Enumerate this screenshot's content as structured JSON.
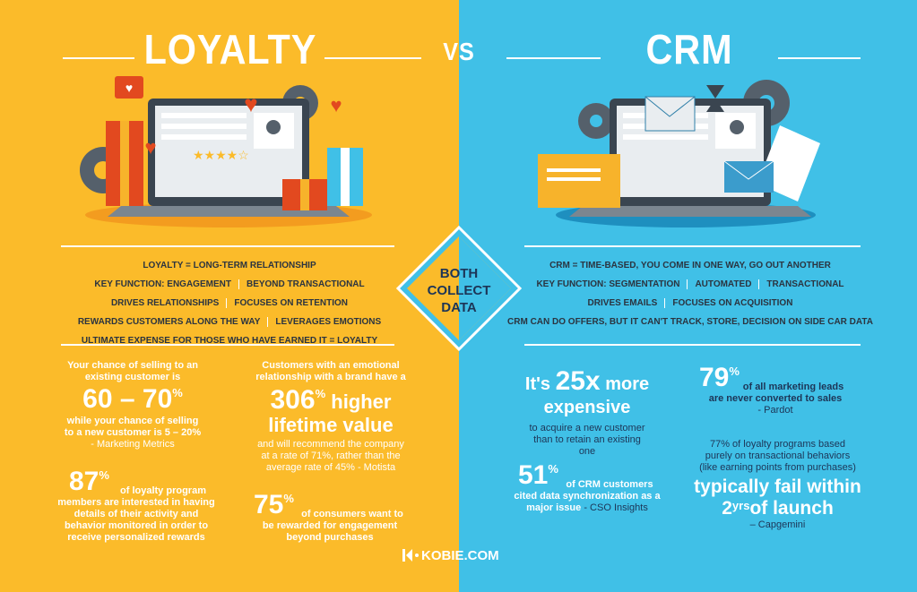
{
  "header": {
    "left_title": "LOYALTY",
    "vs": "VS",
    "right_title": "CRM"
  },
  "center": {
    "lines": [
      "BOTH",
      "COLLECT",
      "DATA"
    ]
  },
  "loyalty": {
    "features": [
      [
        "LOYALTY = LONG-TERM RELATIONSHIP"
      ],
      [
        "KEY FUNCTION: ENGAGEMENT",
        "BEYOND TRANSACTIONAL"
      ],
      [
        "DRIVES RELATIONSHIPS",
        "FOCUSES ON RETENTION"
      ],
      [
        "REWARDS CUSTOMERS ALONG THE WAY",
        "LEVERAGES EMOTIONS"
      ],
      [
        "ULTIMATE EXPENSE FOR THOSE WHO HAVE EARNED IT = LOYALTY"
      ]
    ],
    "stats": [
      {
        "pre": "Your chance of selling to an existing customer is",
        "big": "60 – 70",
        "sup": "%",
        "post": "while your chance of selling to a new customer is 5 – 20%",
        "source": "- Marketing Metrics"
      },
      {
        "big": "87",
        "sup": "%",
        "text": "of loyalty program members are interested in having details of their activity and behavior monitored in order to receive personalized rewards"
      },
      {
        "pre": "Customers with an emotional relationship with a brand have a",
        "big": "306",
        "sup": "%",
        "big2": "higher lifetime value",
        "post": "and will recommend the company at a rate of 71%, rather than the average rate of 45% - Motista"
      },
      {
        "big": "75",
        "sup": "%",
        "text": "of consumers want to be rewarded for engagement beyond purchases"
      }
    ]
  },
  "crm": {
    "features": [
      [
        "CRM = TIME-BASED, YOU COME IN ONE WAY, GO OUT ANOTHER"
      ],
      [
        "KEY FUNCTION: SEGMENTATION",
        "AUTOMATED",
        "TRANSACTIONAL"
      ],
      [
        "DRIVES EMAILS",
        "FOCUSES ON ACQUISITION"
      ],
      [
        "CRM CAN DO OFFERS, BUT IT CAN'T TRACK, STORE, DECISION ON SIDE CAR DATA"
      ]
    ],
    "stats": [
      {
        "lead": "It's",
        "big": "25x",
        "big2": "more expensive",
        "post": "to acquire a new customer than to retain an existing one"
      },
      {
        "big": "51",
        "sup": "%",
        "text": "of CRM customers cited data synchronization as a major issue",
        "source": "- CSO Insights"
      },
      {
        "big": "79",
        "sup": "%",
        "text": "of all marketing leads are never converted to sales",
        "source": "- Pardot"
      },
      {
        "pre": "77% of loyalty programs based purely on transactional behaviors (like earning points from purchases)",
        "big": "typically fail within",
        "big3": "2",
        "sup": "yrs",
        "tail": "of launch",
        "source": "– Capgemini"
      }
    ]
  },
  "footer": {
    "site": "KOBIE.COM"
  }
}
